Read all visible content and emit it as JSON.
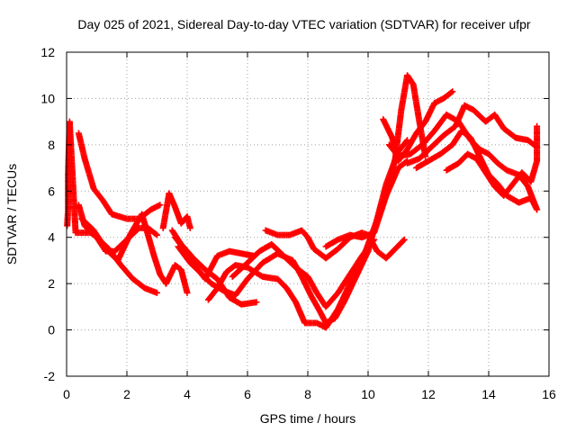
{
  "chart_data": {
    "type": "scatter",
    "title": "Day 025 of 2021, Sidereal Day-to-day VTEC variation (SDTVAR) for receiver ufpr",
    "xlabel": "GPS time / hours",
    "ylabel": "SDTVAR / TECUs",
    "xlim": [
      0,
      16
    ],
    "ylim": [
      -2,
      12
    ],
    "xticks": [
      "0",
      "2",
      "4",
      "6",
      "8",
      "10",
      "12",
      "14",
      "16"
    ],
    "yticks": [
      "-2",
      "0",
      "2",
      "4",
      "6",
      "8",
      "10",
      "12"
    ],
    "grid": true,
    "marker": "plus",
    "series": [
      {
        "color": "#ff0000",
        "points": [
          [
            0.02,
            4.5
          ],
          [
            0.05,
            5.2
          ],
          [
            0.05,
            6.7
          ],
          [
            0.1,
            9.0
          ],
          [
            0.3,
            4.2
          ],
          [
            0.5,
            4.2
          ],
          [
            0.8,
            4.2
          ],
          [
            1.0,
            4.0
          ],
          [
            1.3,
            3.4
          ],
          [
            1.6,
            3.4
          ],
          [
            2.0,
            3.9
          ],
          [
            2.4,
            4.4
          ],
          [
            2.7,
            4.4
          ],
          [
            3.0,
            4.1
          ]
        ]
      },
      {
        "color": "#ff0000",
        "points": [
          [
            0.4,
            8.5
          ],
          [
            0.6,
            7.4
          ],
          [
            0.9,
            6.1
          ],
          [
            1.2,
            5.6
          ],
          [
            1.5,
            5.0
          ],
          [
            2.0,
            4.8
          ],
          [
            2.4,
            4.8
          ],
          [
            2.8,
            5.2
          ],
          [
            3.1,
            5.4
          ]
        ]
      },
      {
        "color": "#ff0000",
        "points": [
          [
            0.4,
            5.4
          ],
          [
            0.6,
            4.5
          ],
          [
            1.0,
            4.0
          ],
          [
            1.4,
            3.5
          ],
          [
            1.8,
            2.8
          ],
          [
            2.2,
            2.2
          ],
          [
            2.6,
            1.8
          ],
          [
            3.0,
            1.6
          ]
        ]
      },
      {
        "color": "#ff0000",
        "points": [
          [
            0.5,
            4.8
          ],
          [
            0.9,
            4.3
          ],
          [
            1.3,
            3.5
          ],
          [
            1.7,
            3.0
          ],
          [
            2.1,
            4.1
          ],
          [
            2.5,
            5.0
          ],
          [
            2.9,
            3.2
          ],
          [
            3.1,
            2.4
          ],
          [
            3.3,
            2.0
          ]
        ]
      },
      {
        "color": "#ff0000",
        "points": [
          [
            3.2,
            4.4
          ],
          [
            3.4,
            5.9
          ],
          [
            3.6,
            5.3
          ],
          [
            3.8,
            4.6
          ],
          [
            4.0,
            4.9
          ],
          [
            4.1,
            4.4
          ]
        ]
      },
      {
        "color": "#ff0000",
        "points": [
          [
            3.3,
            2.0
          ],
          [
            3.6,
            2.8
          ],
          [
            3.8,
            2.6
          ],
          [
            4.0,
            1.6
          ]
        ]
      },
      {
        "color": "#ff0000",
        "points": [
          [
            3.5,
            4.3
          ],
          [
            3.8,
            3.7
          ],
          [
            4.2,
            3.1
          ],
          [
            4.6,
            2.6
          ],
          [
            5.0,
            2.2
          ],
          [
            5.4,
            1.4
          ],
          [
            5.8,
            1.1
          ],
          [
            6.3,
            1.2
          ]
        ]
      },
      {
        "color": "#ff0000",
        "points": [
          [
            3.6,
            4.0
          ],
          [
            4.0,
            3.3
          ],
          [
            4.3,
            2.7
          ],
          [
            4.6,
            2.2
          ],
          [
            4.8,
            2.7
          ],
          [
            5.0,
            3.2
          ],
          [
            5.4,
            3.4
          ],
          [
            5.8,
            3.3
          ],
          [
            6.2,
            3.2
          ]
        ]
      },
      {
        "color": "#ff0000",
        "points": [
          [
            3.7,
            3.6
          ],
          [
            4.1,
            2.9
          ],
          [
            4.5,
            2.4
          ],
          [
            4.8,
            2.0
          ],
          [
            5.2,
            1.7
          ],
          [
            5.6,
            1.5
          ],
          [
            6.0,
            2.2
          ],
          [
            6.5,
            2.9
          ],
          [
            7.0,
            3.3
          ],
          [
            7.5,
            3.0
          ],
          [
            7.8,
            2.3
          ],
          [
            8.1,
            1.5
          ],
          [
            8.4,
            0.8
          ],
          [
            8.6,
            0.3
          ],
          [
            8.9,
            0.5
          ],
          [
            9.2,
            1.2
          ],
          [
            9.6,
            2.3
          ],
          [
            10.0,
            3.4
          ],
          [
            10.3,
            4.8
          ],
          [
            10.6,
            6.3
          ],
          [
            11.0,
            7.7
          ],
          [
            11.3,
            8.2
          ]
        ]
      },
      {
        "color": "#ff0000",
        "points": [
          [
            4.7,
            1.3
          ],
          [
            5.0,
            1.8
          ],
          [
            5.3,
            2.5
          ],
          [
            5.6,
            2.8
          ],
          [
            6.0,
            2.7
          ],
          [
            6.5,
            2.3
          ],
          [
            7.0,
            2.2
          ],
          [
            7.3,
            1.8
          ],
          [
            7.6,
            1.2
          ],
          [
            7.9,
            0.3
          ],
          [
            8.3,
            0.3
          ],
          [
            8.6,
            0.1
          ],
          [
            9.0,
            0.9
          ],
          [
            9.4,
            2.0
          ],
          [
            9.8,
            3.0
          ],
          [
            10.2,
            4.4
          ],
          [
            10.6,
            5.8
          ],
          [
            11.0,
            7.0
          ],
          [
            11.3,
            7.3
          ]
        ]
      },
      {
        "color": "#ff0000",
        "points": [
          [
            5.5,
            2.3
          ],
          [
            6.0,
            2.9
          ],
          [
            6.4,
            3.4
          ],
          [
            6.8,
            3.7
          ],
          [
            7.2,
            3.2
          ],
          [
            7.6,
            2.7
          ],
          [
            8.0,
            2.3
          ],
          [
            8.3,
            1.6
          ],
          [
            8.6,
            1.0
          ],
          [
            9.0,
            1.6
          ],
          [
            9.4,
            2.4
          ],
          [
            9.8,
            3.2
          ],
          [
            10.2,
            3.9
          ]
        ]
      },
      {
        "color": "#ff0000",
        "points": [
          [
            6.6,
            4.3
          ],
          [
            7.0,
            4.1
          ],
          [
            7.4,
            4.1
          ],
          [
            7.8,
            4.3
          ],
          [
            8.0,
            4.0
          ],
          [
            8.2,
            3.5
          ],
          [
            8.6,
            3.1
          ],
          [
            9.0,
            3.5
          ],
          [
            9.4,
            4.0
          ],
          [
            9.8,
            4.2
          ],
          [
            10.0,
            4.1
          ],
          [
            10.3,
            3.4
          ],
          [
            10.6,
            3.1
          ],
          [
            10.9,
            3.5
          ],
          [
            11.2,
            3.9
          ]
        ]
      },
      {
        "color": "#ff0000",
        "points": [
          [
            8.6,
            3.6
          ],
          [
            9.0,
            3.9
          ],
          [
            9.4,
            4.1
          ],
          [
            9.8,
            4.0
          ],
          [
            10.2,
            4.2
          ],
          [
            10.6,
            5.8
          ],
          [
            10.9,
            7.4
          ],
          [
            11.1,
            9.5
          ],
          [
            11.3,
            11.0
          ],
          [
            11.5,
            10.6
          ],
          [
            11.7,
            9.0
          ],
          [
            11.9,
            7.5
          ]
        ]
      },
      {
        "color": "#ff0000",
        "points": [
          [
            10.5,
            9.1
          ],
          [
            10.8,
            8.3
          ],
          [
            11.0,
            7.3
          ],
          [
            11.3,
            7.8
          ],
          [
            11.6,
            8.5
          ],
          [
            11.9,
            9.0
          ],
          [
            12.2,
            9.8
          ],
          [
            12.5,
            10.0
          ],
          [
            12.8,
            10.3
          ]
        ]
      },
      {
        "color": "#ff0000",
        "points": [
          [
            10.7,
            8.0
          ],
          [
            11.0,
            7.5
          ],
          [
            11.4,
            7.6
          ],
          [
            11.8,
            8.0
          ],
          [
            12.2,
            8.6
          ],
          [
            12.6,
            9.3
          ],
          [
            13.0,
            9.0
          ],
          [
            13.4,
            8.2
          ],
          [
            13.7,
            7.8
          ],
          [
            14.0,
            7.6
          ],
          [
            14.3,
            7.2
          ],
          [
            14.6,
            6.9
          ],
          [
            15.0,
            6.7
          ],
          [
            15.3,
            6.2
          ],
          [
            15.6,
            5.2
          ]
        ]
      },
      {
        "color": "#ff0000",
        "points": [
          [
            11.3,
            7.2
          ],
          [
            11.7,
            7.4
          ],
          [
            12.1,
            7.9
          ],
          [
            12.5,
            8.4
          ],
          [
            12.9,
            8.8
          ],
          [
            13.2,
            9.7
          ],
          [
            13.5,
            9.5
          ],
          [
            13.9,
            9.0
          ],
          [
            14.2,
            9.3
          ],
          [
            14.5,
            8.7
          ],
          [
            14.9,
            8.3
          ],
          [
            15.3,
            8.2
          ],
          [
            15.6,
            7.9
          ]
        ]
      },
      {
        "color": "#ff0000",
        "points": [
          [
            11.6,
            7.0
          ],
          [
            12.0,
            7.3
          ],
          [
            12.4,
            7.6
          ],
          [
            12.8,
            8.0
          ],
          [
            13.1,
            8.6
          ],
          [
            13.4,
            8.3
          ],
          [
            13.7,
            7.5
          ],
          [
            14.0,
            6.7
          ],
          [
            14.3,
            6.3
          ],
          [
            14.6,
            5.8
          ],
          [
            15.0,
            5.5
          ],
          [
            15.4,
            5.7
          ],
          [
            15.6,
            5.2
          ]
        ]
      },
      {
        "color": "#ff0000",
        "points": [
          [
            12.6,
            6.9
          ],
          [
            13.0,
            7.2
          ],
          [
            13.3,
            7.6
          ],
          [
            13.6,
            7.4
          ],
          [
            13.9,
            6.8
          ],
          [
            14.2,
            6.2
          ],
          [
            14.5,
            5.8
          ],
          [
            14.8,
            6.3
          ],
          [
            15.1,
            6.8
          ],
          [
            15.4,
            6.4
          ],
          [
            15.6,
            7.3
          ],
          [
            15.6,
            8.8
          ]
        ]
      }
    ]
  }
}
